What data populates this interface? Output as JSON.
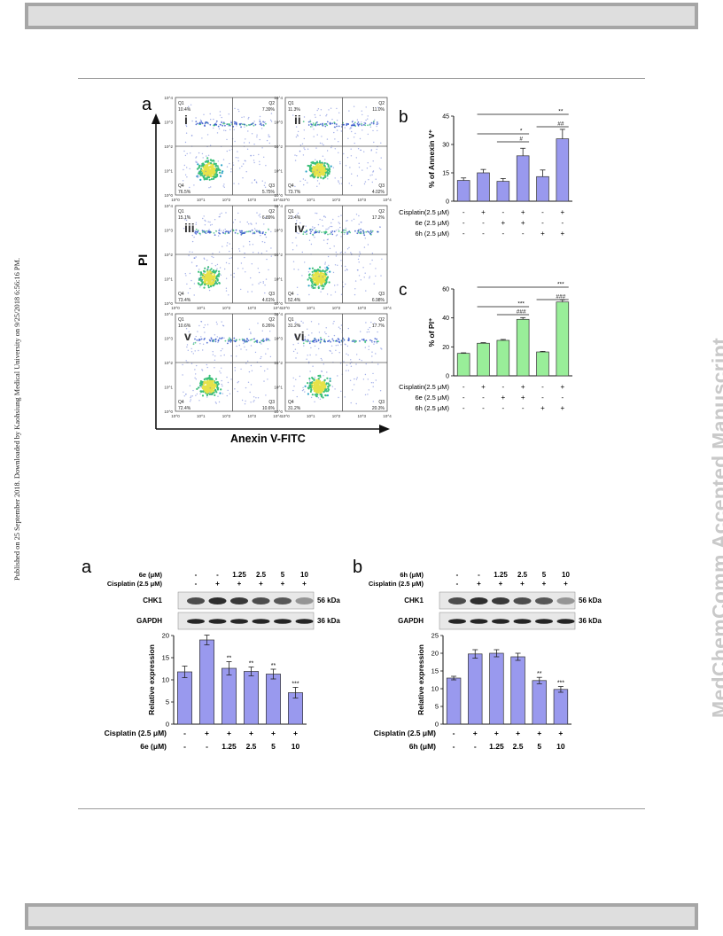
{
  "side_text": {
    "left": "Published on 25 September 2018. Downloaded by Kaohsiung Medical University on 9/25/2018 6:56:16 PM.",
    "right": "MedChemComm Accepted Manuscript"
  },
  "figure_top": {
    "panel_a": {
      "label": "a",
      "y_axis_label": "PI",
      "x_axis_label": "Anexin V-FITC",
      "plots": [
        {
          "label": "i",
          "q1": "Q1\n10.4%",
          "q2": "Q2\n7.39%",
          "q3": "Q3\n5.75%",
          "q4": "Q4\n76.5%"
        },
        {
          "label": "ii",
          "q1": "Q1\n11.3%",
          "q2": "Q2\n11.0%",
          "q3": "Q3\n4.02%",
          "q4": "Q4\n73.7%"
        },
        {
          "label": "iii",
          "q1": "Q1\n15.1%",
          "q2": "Q2\n6.89%",
          "q3": "Q3\n4.61%",
          "q4": "Q4\n73.4%"
        },
        {
          "label": "iv",
          "q1": "Q1\n23.4%",
          "q2": "Q2\n17.2%",
          "q3": "Q3\n6.98%",
          "q4": "Q4\n52.4%"
        },
        {
          "label": "v",
          "q1": "Q1\n10.6%",
          "q2": "Q2\n6.26%",
          "q3": "Q3\n10.6%",
          "q4": "Q4\n72.4%"
        },
        {
          "label": "vi",
          "q1": "Q1\n31.2%",
          "q2": "Q2\n17.7%",
          "q3": "Q3\n20.3%",
          "q4": "Q4\n31.2%"
        }
      ],
      "tick_labels": [
        "10^0",
        "10^1",
        "10^2",
        "10^3",
        "10^4"
      ]
    },
    "conditions": {
      "row_labels": [
        "Cisplatin(2.5 μM)",
        "6e (2.5 μM)",
        "6h (2.5 μM)"
      ],
      "rows": [
        [
          "-",
          "+",
          "-",
          "+",
          "-",
          "+"
        ],
        [
          "-",
          "-",
          "+",
          "+",
          "-",
          "-"
        ],
        [
          "-",
          "-",
          "-",
          "-",
          "+",
          "+"
        ]
      ]
    }
  },
  "figure_bottom": {
    "panel_a": {
      "label": "a",
      "compound_label": "6e (μM)",
      "compound_values": [
        "-",
        "-",
        "1.25",
        "2.5",
        "5",
        "10"
      ],
      "cisplatin_label": "Cisplatin (2.5 μM)",
      "cisplatin_values": [
        "-",
        "+",
        "+",
        "+",
        "+",
        "+"
      ],
      "blot_rows": [
        {
          "name": "CHK1",
          "size": "56 kDa"
        },
        {
          "name": "GAPDH",
          "size": "36 kDa"
        }
      ],
      "x_label_1": "Cisplatin (2.5 μM)",
      "x_label_2": "6e (μM)"
    },
    "panel_b": {
      "label": "b",
      "compound_label": "6h (μM)",
      "compound_values": [
        "-",
        "-",
        "1.25",
        "2.5",
        "5",
        "10"
      ],
      "cisplatin_label": "Cisplatin (2.5 μM)",
      "cisplatin_values": [
        "-",
        "+",
        "+",
        "+",
        "+",
        "+"
      ],
      "blot_rows": [
        {
          "name": "CHK1",
          "size": "56 kDa"
        },
        {
          "name": "GAPDH",
          "size": "36 kDa"
        }
      ],
      "x_label_1": "Cisplatin (2.5 μM)",
      "x_label_2": "6h (μM)"
    }
  },
  "chart_data": [
    {
      "type": "bar",
      "panel": "b",
      "ylabel": "% of Annexin V⁺",
      "ylim": [
        0,
        45
      ],
      "yticks": [
        0,
        15,
        30,
        45
      ],
      "values": [
        11,
        15,
        10.5,
        24,
        13,
        33
      ],
      "errors": [
        1.3,
        1.8,
        1.5,
        4,
        3.5,
        5
      ],
      "color": "#9999ee",
      "significance": [
        {
          "from": 1,
          "to": 5,
          "label": "**"
        },
        {
          "from": 4,
          "to": 5,
          "label": "##"
        },
        {
          "from": 1,
          "to": 3,
          "label": "*"
        },
        {
          "from": 2,
          "to": 3,
          "label": "#"
        }
      ]
    },
    {
      "type": "bar",
      "panel": "c",
      "ylabel": "% of PI⁺",
      "ylim": [
        0,
        60
      ],
      "yticks": [
        0,
        20,
        40,
        60
      ],
      "values": [
        15.5,
        22.5,
        24.5,
        39,
        16.5,
        51
      ],
      "errors": [
        0.4,
        0.4,
        0.6,
        1.2,
        0.4,
        1.5
      ],
      "color": "#99ee99",
      "significance": [
        {
          "from": 1,
          "to": 5,
          "label": "***"
        },
        {
          "from": 4,
          "to": 5,
          "label": "###"
        },
        {
          "from": 1,
          "to": 3,
          "label": "***"
        },
        {
          "from": 2,
          "to": 3,
          "label": "###"
        }
      ]
    },
    {
      "type": "bar",
      "panel": "a (bottom)",
      "ylabel": "Relative expression",
      "ylim": [
        0,
        20
      ],
      "yticks": [
        0,
        5,
        10,
        15,
        20
      ],
      "values": [
        11.8,
        19,
        12.6,
        11.9,
        11.3,
        7.1
      ],
      "errors": [
        1.3,
        1.1,
        1.5,
        1.0,
        1.1,
        1.2
      ],
      "stars": [
        "",
        "",
        "**",
        "**",
        "**",
        "***"
      ],
      "color": "#9999ee"
    },
    {
      "type": "bar",
      "panel": "b (bottom)",
      "ylabel": "Relative expression",
      "ylim": [
        0,
        25
      ],
      "yticks": [
        0,
        5,
        10,
        15,
        20,
        25
      ],
      "values": [
        13,
        19.8,
        20,
        19,
        12.3,
        9.8
      ],
      "errors": [
        0.5,
        1.2,
        1.0,
        1.0,
        0.9,
        0.8
      ],
      "stars": [
        "",
        "",
        "",
        "",
        "**",
        "***"
      ],
      "color": "#9999ee"
    }
  ]
}
